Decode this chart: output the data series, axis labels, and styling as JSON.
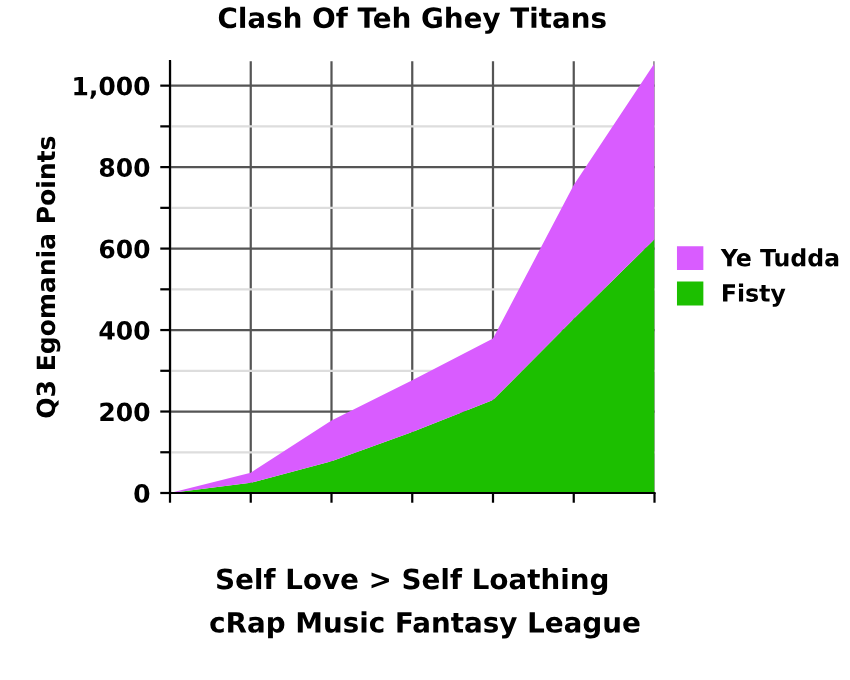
{
  "chart_data": {
    "type": "area",
    "stacked": true,
    "title": "Clash Of Teh Ghey Titans",
    "xlabel": "Self Love > Self Loathing",
    "ylabel": "Q3 Egomania Points",
    "annotations": [
      "cRap Music Fantasy League"
    ],
    "categories": [
      null,
      null,
      null,
      null,
      null,
      null,
      null
    ],
    "series": [
      {
        "name": "Fisty",
        "color": "#1cbf00",
        "values": [
          0,
          25,
          78,
          150,
          228,
          428,
          623
        ]
      },
      {
        "name": "Ye Tudda",
        "color": "#d95cff",
        "values": [
          0,
          25,
          100,
          127,
          151,
          328,
          432
        ]
      }
    ],
    "ylim": [
      0,
      1060
    ],
    "yticks": [
      0,
      {
        "value": 100,
        "label": null
      },
      200,
      {
        "value": 300,
        "label": null
      },
      400,
      {
        "value": 500,
        "label": null
      },
      600,
      {
        "value": 700,
        "label": null
      },
      800,
      {
        "value": 900,
        "label": null
      },
      {
        "value": 1000,
        "label": "1,000"
      }
    ],
    "grid": true,
    "legend": "right"
  }
}
